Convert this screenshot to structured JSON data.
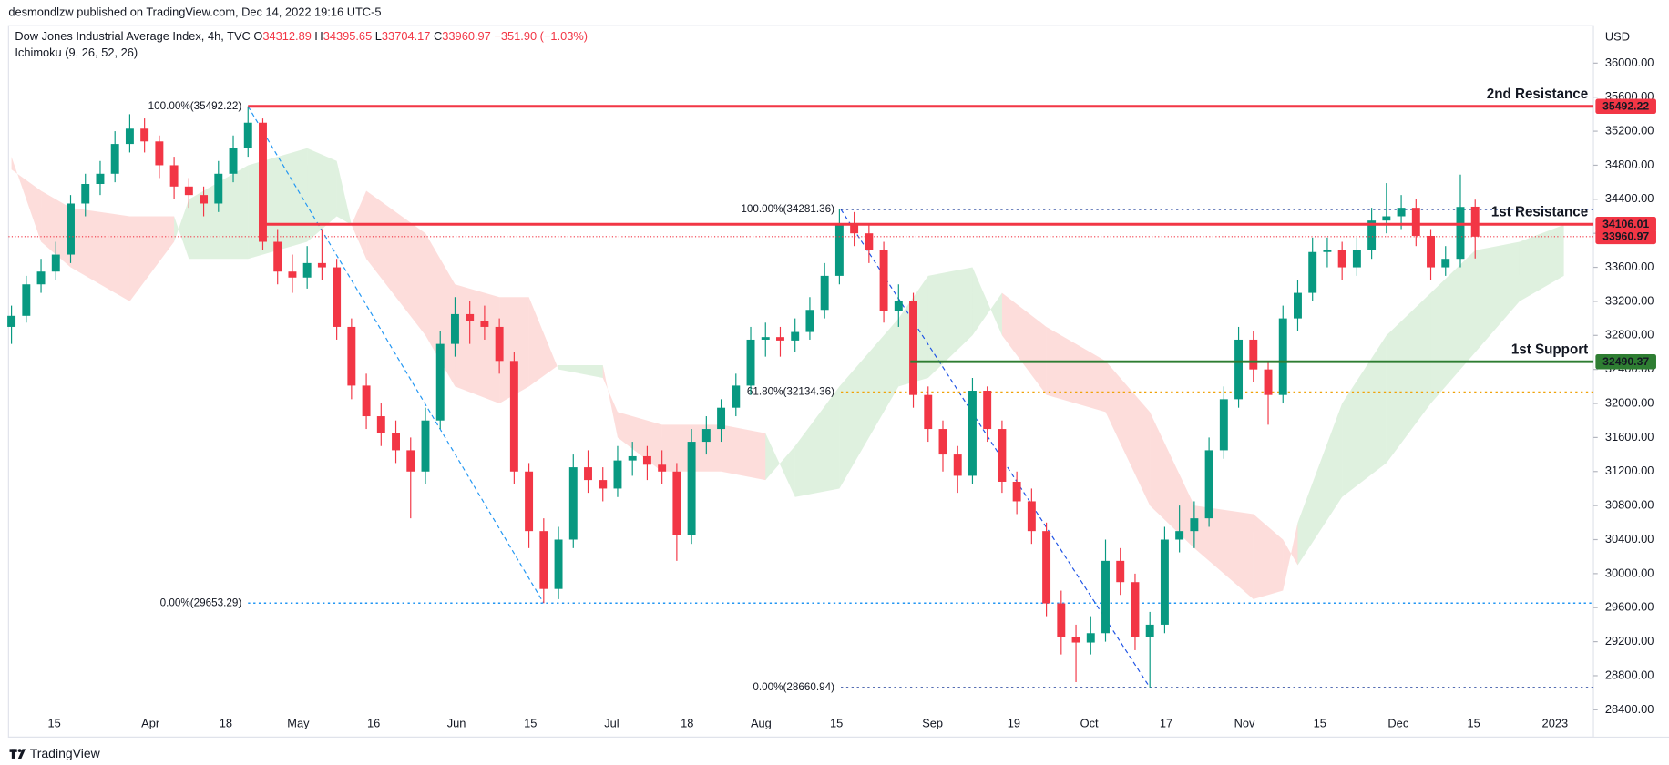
{
  "chart_data": {
    "type": "candlestick",
    "publisher": "desmondlzw published on TradingView.com, Dec 14, 2022 19:16 UTC-5",
    "symbol": "Dow Jones Industrial Average Index, 4h, TVC",
    "ohlc_keys": [
      "O",
      "H",
      "L",
      "C"
    ],
    "change": "−351.90 (−1.03%)",
    "indicator": "Ichimoku (9, 26, 52, 26)",
    "currency": "USD",
    "brand": "TradingView",
    "up_color": "#089981",
    "down_color": "#f23645",
    "candles": [
      [
        32900,
        33150,
        32700,
        33030
      ],
      [
        33030,
        33500,
        32950,
        33400
      ],
      [
        33400,
        33700,
        33300,
        33550
      ],
      [
        33550,
        33900,
        33450,
        33750
      ],
      [
        33750,
        34450,
        33650,
        34350
      ],
      [
        34350,
        34700,
        34200,
        34580
      ],
      [
        34580,
        34850,
        34450,
        34700
      ],
      [
        34700,
        35200,
        34600,
        35050
      ],
      [
        35050,
        35400,
        34950,
        35230
      ],
      [
        35230,
        35350,
        34950,
        35080
      ],
      [
        35080,
        35150,
        34650,
        34800
      ],
      [
        34800,
        34900,
        34400,
        34550
      ],
      [
        34550,
        34650,
        34300,
        34450
      ],
      [
        34450,
        34550,
        34200,
        34350
      ],
      [
        34350,
        34850,
        34250,
        34700
      ],
      [
        34700,
        35150,
        34600,
        35000
      ],
      [
        35000,
        35492.22,
        34900,
        35300
      ],
      [
        35300,
        35350,
        33800,
        33900
      ],
      [
        33900,
        34050,
        33400,
        33550
      ],
      [
        33550,
        33750,
        33300,
        33480
      ],
      [
        33480,
        33850,
        33350,
        33650
      ],
      [
        33650,
        34050,
        33450,
        33600
      ],
      [
        33600,
        33700,
        32750,
        32900
      ],
      [
        32900,
        33000,
        32050,
        32210
      ],
      [
        32210,
        32350,
        31700,
        31850
      ],
      [
        31850,
        32000,
        31500,
        31650
      ],
      [
        31650,
        31800,
        31300,
        31450
      ],
      [
        31450,
        31600,
        30650,
        31200
      ],
      [
        31200,
        31950,
        31050,
        31800
      ],
      [
        31800,
        32850,
        31700,
        32700
      ],
      [
        32700,
        33250,
        32550,
        33050
      ],
      [
        33050,
        33200,
        32700,
        32970
      ],
      [
        32970,
        33150,
        32750,
        32900
      ],
      [
        32900,
        33000,
        32350,
        32500
      ],
      [
        32500,
        32600,
        31050,
        31200
      ],
      [
        31200,
        31300,
        30300,
        30500
      ],
      [
        30500,
        30650,
        29653.29,
        29820
      ],
      [
        29820,
        30550,
        29700,
        30400
      ],
      [
        30400,
        31400,
        30300,
        31250
      ],
      [
        31250,
        31450,
        30950,
        31100
      ],
      [
        31100,
        31250,
        30850,
        31000
      ],
      [
        31000,
        31500,
        30900,
        31330
      ],
      [
        31330,
        31550,
        31150,
        31380
      ],
      [
        31380,
        31500,
        31100,
        31280
      ],
      [
        31280,
        31450,
        31050,
        31200
      ],
      [
        31200,
        31300,
        30150,
        30450
      ],
      [
        30450,
        31700,
        30350,
        31550
      ],
      [
        31550,
        31850,
        31400,
        31700
      ],
      [
        31700,
        32050,
        31550,
        31950
      ],
      [
        31950,
        32350,
        31850,
        32210
      ],
      [
        32210,
        32900,
        32100,
        32750
      ],
      [
        32750,
        32950,
        32550,
        32780
      ],
      [
        32780,
        32900,
        32550,
        32740
      ],
      [
        32740,
        33000,
        32600,
        32840
      ],
      [
        32840,
        33250,
        32750,
        33100
      ],
      [
        33100,
        33650,
        33000,
        33500
      ],
      [
        33500,
        34281.36,
        33400,
        34100
      ],
      [
        34100,
        34250,
        33850,
        34000
      ],
      [
        34000,
        34100,
        33650,
        33800
      ],
      [
        33800,
        33900,
        32950,
        33090
      ],
      [
        33090,
        33400,
        32900,
        33200
      ],
      [
        33200,
        33300,
        31950,
        32100
      ],
      [
        32100,
        32200,
        31550,
        31700
      ],
      [
        31700,
        31800,
        31200,
        31400
      ],
      [
        31400,
        31500,
        30950,
        31150
      ],
      [
        31150,
        32300,
        31050,
        32150
      ],
      [
        32150,
        32200,
        31550,
        31700
      ],
      [
        31700,
        31800,
        30950,
        31080
      ],
      [
        31080,
        31200,
        30700,
        30850
      ],
      [
        30850,
        31000,
        30350,
        30500
      ],
      [
        30500,
        30600,
        29500,
        29650
      ],
      [
        29650,
        29800,
        29050,
        29250
      ],
      [
        29250,
        29400,
        28725,
        29190
      ],
      [
        29190,
        29500,
        29050,
        29300
      ],
      [
        29300,
        30400,
        29200,
        30150
      ],
      [
        30150,
        30300,
        29750,
        29900
      ],
      [
        29900,
        30000,
        29100,
        29250
      ],
      [
        29250,
        29550,
        28660.94,
        29400
      ],
      [
        29400,
        30550,
        29300,
        30400
      ],
      [
        30400,
        30800,
        30250,
        30500
      ],
      [
        30500,
        30850,
        30300,
        30650
      ],
      [
        30650,
        31600,
        30550,
        31450
      ],
      [
        31450,
        32200,
        31350,
        32050
      ],
      [
        32050,
        32900,
        31950,
        32750
      ],
      [
        32750,
        32850,
        32250,
        32400
      ],
      [
        32400,
        32500,
        31750,
        32100
      ],
      [
        32100,
        33150,
        32000,
        33000
      ],
      [
        33000,
        33450,
        32850,
        33300
      ],
      [
        33300,
        33950,
        33200,
        33780
      ],
      [
        33780,
        33950,
        33600,
        33800
      ],
      [
        33800,
        33900,
        33450,
        33600
      ],
      [
        33600,
        33950,
        33500,
        33800
      ],
      [
        33800,
        34300,
        33700,
        34150
      ],
      [
        34150,
        34590,
        34000,
        34200
      ],
      [
        34200,
        34450,
        34050,
        34300
      ],
      [
        34300,
        34400,
        33850,
        33970
      ],
      [
        33970,
        34050,
        33450,
        33600
      ],
      [
        33600,
        33850,
        33500,
        33700
      ],
      [
        33700,
        34690,
        33600,
        34310
      ],
      [
        34312.89,
        34395.65,
        33704.17,
        33960.97
      ]
    ],
    "cloud": {
      "up_color": "rgba(76,175,80,0.18)",
      "down_color": "rgba(244,67,54,0.18)",
      "x": [
        0,
        2,
        4,
        8,
        11,
        12,
        16,
        20,
        22,
        23,
        24,
        28,
        30,
        33,
        35,
        37,
        40,
        41,
        44,
        48,
        51,
        53,
        56,
        60,
        62,
        65,
        67,
        70,
        74,
        77,
        80,
        84,
        86,
        87,
        90,
        93,
        96,
        99,
        102,
        105
      ],
      "span_a": [
        34900,
        33900,
        33600,
        33200,
        33900,
        34400,
        34800,
        35000,
        34850,
        34100,
        33700,
        32800,
        32200,
        32000,
        32200,
        32450,
        32450,
        31600,
        31200,
        31200,
        31100,
        31500,
        32200,
        33000,
        33500,
        33600,
        32800,
        32100,
        31900,
        30800,
        30300,
        29700,
        29800,
        30600,
        32000,
        32800,
        33300,
        33800,
        33900,
        34100
      ],
      "span_b": [
        34750,
        34500,
        34300,
        34200,
        34200,
        33700,
        33700,
        33900,
        34200,
        34100,
        34500,
        34000,
        33400,
        33250,
        33250,
        32400,
        32300,
        31900,
        31750,
        31750,
        31650,
        30900,
        31000,
        32200,
        32300,
        32800,
        33300,
        32900,
        32500,
        31900,
        30800,
        30700,
        30400,
        30100,
        30900,
        31300,
        32000,
        32600,
        33200,
        33500
      ]
    },
    "levels": [
      {
        "name": "2nd Resistance",
        "value": 35492.22,
        "start_x": 16,
        "color": "#f23645"
      },
      {
        "name": "1st Resistance",
        "value": 34106.01,
        "start_x": 17.2,
        "color": "#f23645"
      },
      {
        "name": "1st Support",
        "value": 32490.37,
        "start_x": 60.8,
        "color": "#2e7d32"
      }
    ],
    "last_price_color": "#f23645",
    "fibs": [
      {
        "start_x": 16,
        "end_x": 36,
        "high": 35492.22,
        "low": 29653.29,
        "color": "#2196f3",
        "lines": [
          {
            "value": 35492.22,
            "label": "100.00%(35492.22)",
            "color": "#2196f3"
          },
          {
            "value": 29653.29,
            "label": "0.00%(29653.29)",
            "color": "#2196f3"
          }
        ]
      },
      {
        "start_x": 56.1,
        "end_x": 77,
        "high": 34281.36,
        "low": 28660.94,
        "color": "#1e53e5",
        "lines": [
          {
            "value": 34281.36,
            "label": "100.00%(34281.36)",
            "color": "#1e3f9a"
          },
          {
            "value": 32134.36,
            "label": "61.80%(32134.36)",
            "color": "#f0a30a"
          },
          {
            "value": 28660.94,
            "label": "0.00%(28660.94)",
            "color": "#1e3f9a"
          }
        ]
      }
    ],
    "xlim": [
      -0.2,
      107
    ],
    "ylim": [
      28330,
      36440
    ],
    "xticks": [
      {
        "value": 2.9,
        "label": "15"
      },
      {
        "value": 9.4,
        "label": "Apr"
      },
      {
        "value": 14.5,
        "label": "18"
      },
      {
        "value": 19.4,
        "label": "May"
      },
      {
        "value": 24.5,
        "label": "16"
      },
      {
        "value": 30.1,
        "label": "Jun"
      },
      {
        "value": 35.1,
        "label": "15"
      },
      {
        "value": 40.6,
        "label": "Jul"
      },
      {
        "value": 45.7,
        "label": "18"
      },
      {
        "value": 50.7,
        "label": "Aug"
      },
      {
        "value": 55.8,
        "label": "15"
      },
      {
        "value": 62.3,
        "label": "Sep"
      },
      {
        "value": 67.8,
        "label": "19"
      },
      {
        "value": 72.9,
        "label": "Oct"
      },
      {
        "value": 78.1,
        "label": "17"
      },
      {
        "value": 83.4,
        "label": "Nov"
      },
      {
        "value": 88.5,
        "label": "15"
      },
      {
        "value": 93.8,
        "label": "Dec"
      },
      {
        "value": 98.9,
        "label": "15"
      },
      {
        "value": 104.4,
        "label": "2023"
      }
    ],
    "yticks": [
      {
        "value": 36000,
        "label": "36000.00"
      },
      {
        "value": 35600,
        "label": "35600.00"
      },
      {
        "value": 35200,
        "label": "35200.00"
      },
      {
        "value": 34800,
        "label": "34800.00"
      },
      {
        "value": 34400,
        "label": "34400.00"
      },
      {
        "value": 34000,
        "label": "34000.00"
      },
      {
        "value": 33600,
        "label": "33600.00"
      },
      {
        "value": 33200,
        "label": "33200.00"
      },
      {
        "value": 32800,
        "label": "32800.00"
      },
      {
        "value": 32400,
        "label": "32400.00"
      },
      {
        "value": 32000,
        "label": "32000.00"
      },
      {
        "value": 31600,
        "label": "31600.00"
      },
      {
        "value": 31200,
        "label": "31200.00"
      },
      {
        "value": 30800,
        "label": "30800.00"
      },
      {
        "value": 30400,
        "label": "30400.00"
      },
      {
        "value": 30000,
        "label": "30000.00"
      },
      {
        "value": 29600,
        "label": "29600.00"
      },
      {
        "value": 29200,
        "label": "29200.00"
      },
      {
        "value": 28800,
        "label": "28800.00"
      },
      {
        "value": 28400,
        "label": "28400.00"
      }
    ],
    "grid": false
  }
}
